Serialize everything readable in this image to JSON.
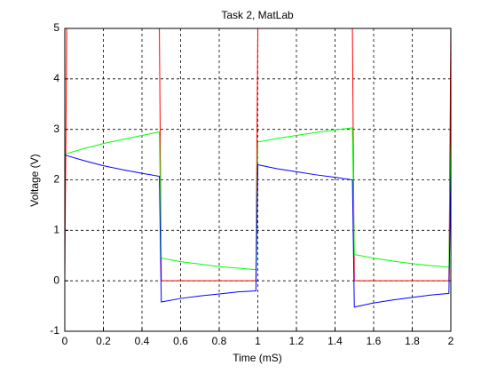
{
  "chart_data": {
    "type": "line",
    "title": "Task 2, MatLab",
    "x_label": "Time (mS)",
    "y_label": "Voltage (V)",
    "x": [
      0,
      0.01,
      0.1,
      0.2,
      0.3,
      0.4,
      0.49,
      0.5,
      0.6,
      0.7,
      0.8,
      0.9,
      0.99,
      1.0,
      1.1,
      1.2,
      1.3,
      1.4,
      1.49,
      1.5,
      1.6,
      1.7,
      1.8,
      1.9,
      1.99,
      2.0
    ],
    "series": [
      {
        "color": "#ff0000",
        "values": [
          0,
          5,
          5,
          5,
          5,
          5,
          5,
          0,
          0,
          0,
          0,
          0,
          0,
          5,
          5,
          5,
          5,
          5,
          5,
          0,
          0,
          0,
          0,
          0,
          0,
          5
        ]
      },
      {
        "color": "#00ff00",
        "values": [
          2.5,
          2.52,
          2.62,
          2.72,
          2.8,
          2.88,
          2.95,
          0.45,
          0.38,
          0.33,
          0.28,
          0.25,
          0.22,
          2.75,
          2.82,
          2.88,
          2.94,
          2.99,
          3.03,
          0.52,
          0.45,
          0.39,
          0.34,
          0.3,
          0.27,
          2.8
        ]
      },
      {
        "color": "#0000ff",
        "values": [
          2.5,
          2.48,
          2.38,
          2.28,
          2.2,
          2.13,
          2.07,
          -0.42,
          -0.35,
          -0.3,
          -0.26,
          -0.22,
          -0.2,
          2.3,
          2.22,
          2.16,
          2.1,
          2.05,
          2.0,
          -0.52,
          -0.44,
          -0.38,
          -0.33,
          -0.28,
          -0.25,
          2.2
        ]
      }
    ],
    "xlim": [
      0,
      2
    ],
    "xticks": [
      0,
      0.2,
      0.4,
      0.6,
      0.8,
      1,
      1.2,
      1.4,
      1.6,
      1.8,
      2
    ],
    "ylim": [
      -1,
      5
    ],
    "yticks": [
      -1,
      0,
      1,
      2,
      3,
      4,
      5
    ],
    "grid": true
  }
}
